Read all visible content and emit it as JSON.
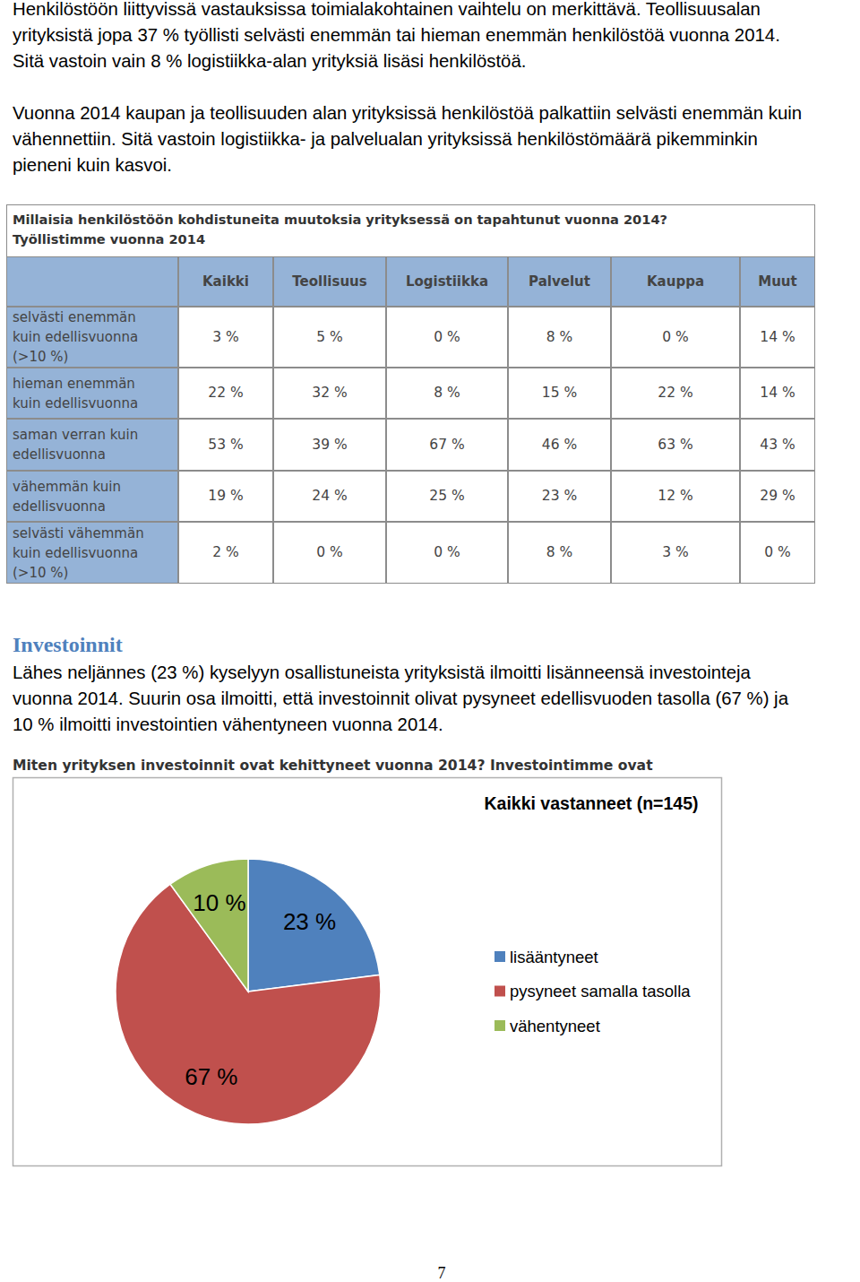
{
  "paragraphs": [
    {
      "lines": [
        "Henkilöstöön liittyvissä vastauksissa toimialakohtainen vaihtelu on merkittävä. Teollisuusalan",
        "yrityksistä jopa 37 % työllisti selvästi enemmän tai hieman enemmän henkilöstöä vuonna 2014.",
        "Sitä vastoin vain 8 % logistiikka-alan yrityksiä lisäsi henkilöstöä."
      ]
    },
    {
      "lines": [
        "Vuonna 2014 kaupan ja teollisuuden alan yrityksissä henkilöstöä palkattiin selvästi enemmän kuin",
        "vähennettiin. Sitä vastoin logistiikka- ja palvelualan yrityksissä henkilöstömäärä pikemminkin",
        "pieneni kuin kasvoi."
      ]
    }
  ],
  "table": {
    "caption": [
      "Millaisia henkilöstöön kohdistuneita muutoksia yrityksessä on tapahtunut vuonna 2014?",
      "Työllistimme vuonna 2014"
    ],
    "columns": [
      "Kaikki",
      "Teollisuus",
      "Logistiikka",
      "Palvelut",
      "Kauppa",
      "Muut"
    ],
    "rows": [
      {
        "label": [
          "selvästi enemmän",
          "kuin edellisvuonna",
          "(>10 %)"
        ],
        "cells": [
          "3 %",
          "5 %",
          "0 %",
          "8 %",
          "0 %",
          "14 %"
        ]
      },
      {
        "label": [
          "hieman enemmän",
          "kuin edellisvuonna"
        ],
        "cells": [
          "22 %",
          "32 %",
          "8 %",
          "15 %",
          "22 %",
          "14 %"
        ]
      },
      {
        "label": [
          "saman verran kuin",
          "edellisvuonna"
        ],
        "cells": [
          "53 %",
          "39 %",
          "67 %",
          "46 %",
          "63 %",
          "43 %"
        ]
      },
      {
        "label": [
          "vähemmän kuin",
          "edellisvuonna"
        ],
        "cells": [
          "19 %",
          "24 %",
          "25 %",
          "23 %",
          "12 %",
          "29 %"
        ]
      },
      {
        "label": [
          "selvästi vähemmän",
          "kuin edellisvuonna",
          "(>10 %)"
        ],
        "cells": [
          "2 %",
          "0 %",
          "0 %",
          "8 %",
          "3 %",
          "0 %"
        ]
      }
    ]
  },
  "section": {
    "heading": "Investoinnit",
    "lines": [
      "Lähes neljännes (23 %) kyselyyn osallistuneista yrityksistä ilmoitti lisänneensä investointeja",
      "vuonna 2014. Suurin osa ilmoitti, että investoinnit olivat pysyneet edellisvuoden tasolla (67 %) ja",
      "10 % ilmoitti investointien vähentyneen vuonna 2014."
    ]
  },
  "chart_caption": "Miten yrityksen investoinnit ovat kehittyneet vuonna 2014? Investointimme ovat",
  "chart_data": {
    "type": "pie",
    "title": "Kaikki vastanneet (n=145)",
    "categories": [
      "lisääntyneet",
      "pysyneet samalla tasolla",
      "vähentyneet"
    ],
    "values": [
      23,
      67,
      10
    ],
    "value_labels": [
      "23 %",
      "67 %",
      "10 %"
    ],
    "colors": [
      "#4f81bd",
      "#c0504d",
      "#9bbb59"
    ],
    "data_labels": true,
    "legend": "right"
  },
  "page_number": "7"
}
